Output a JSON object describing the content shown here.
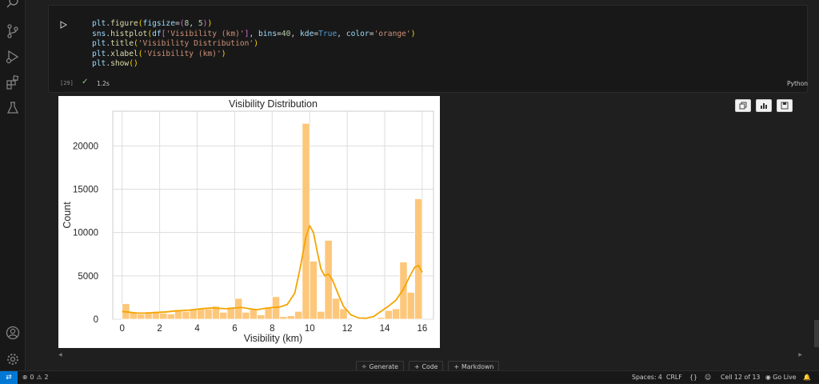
{
  "activity_bar": {
    "icons": [
      "search-icon",
      "source-control-icon",
      "run-debug-icon",
      "extensions-icon",
      "testing-icon",
      "account-icon",
      "settings-gear-icon"
    ]
  },
  "cell": {
    "execution_count": "[29]",
    "exec_time": "1.2s",
    "language": "Python",
    "code_lines": [
      "plt.figure(figsize=(8, 5))",
      "sns.histplot(df['Visibility (km)'], bins=40, kde=True, color='orange')",
      "plt.title('Visibility Distribution')",
      "plt.xlabel('Visibility (km)')",
      "plt.show()"
    ]
  },
  "output_more": "...",
  "toolbar": {
    "generate_label": "Generate",
    "code_label": "Code",
    "markdown_label": "Markdown"
  },
  "status_bar": {
    "errors": "0",
    "warnings": "2",
    "spaces": "Spaces: 4",
    "eol": "CRLF",
    "brackets": "{}",
    "cell_position": "Cell 12 of 13",
    "go_live": "Go Live"
  },
  "colors": {
    "bar_fill": "#fdc77b",
    "bar_edge": "#ffffff",
    "kde_line": "#f5a400"
  },
  "chart_data": {
    "type": "bar",
    "title": "Visibility Distribution",
    "xlabel": "Visibility (km)",
    "ylabel": "Count",
    "xlim": [
      -0.5,
      16.6
    ],
    "ylim": [
      0,
      24000
    ],
    "xticks": [
      0,
      2,
      4,
      6,
      8,
      10,
      12,
      14,
      16
    ],
    "yticks": [
      0,
      5000,
      10000,
      15000,
      20000
    ],
    "grid": true,
    "bins": [
      {
        "x0": 0.0,
        "x1": 0.4,
        "count": 1800
      },
      {
        "x0": 0.4,
        "x1": 0.8,
        "count": 800
      },
      {
        "x0": 0.8,
        "x1": 1.2,
        "count": 600
      },
      {
        "x0": 1.2,
        "x1": 1.6,
        "count": 800
      },
      {
        "x0": 1.6,
        "x1": 2.0,
        "count": 900
      },
      {
        "x0": 2.0,
        "x1": 2.4,
        "count": 700
      },
      {
        "x0": 2.4,
        "x1": 2.8,
        "count": 600
      },
      {
        "x0": 2.8,
        "x1": 3.2,
        "count": 1100
      },
      {
        "x0": 3.2,
        "x1": 3.6,
        "count": 900
      },
      {
        "x0": 3.6,
        "x1": 4.0,
        "count": 1200
      },
      {
        "x0": 4.0,
        "x1": 4.4,
        "count": 1300
      },
      {
        "x0": 4.4,
        "x1": 4.8,
        "count": 1200
      },
      {
        "x0": 4.8,
        "x1": 5.2,
        "count": 1500
      },
      {
        "x0": 5.2,
        "x1": 5.6,
        "count": 800
      },
      {
        "x0": 5.6,
        "x1": 6.0,
        "count": 1400
      },
      {
        "x0": 6.0,
        "x1": 6.4,
        "count": 2400
      },
      {
        "x0": 6.4,
        "x1": 6.8,
        "count": 800
      },
      {
        "x0": 6.8,
        "x1": 7.2,
        "count": 1200
      },
      {
        "x0": 7.2,
        "x1": 7.6,
        "count": 500
      },
      {
        "x0": 7.6,
        "x1": 8.0,
        "count": 1400
      },
      {
        "x0": 8.0,
        "x1": 8.4,
        "count": 2600
      },
      {
        "x0": 8.4,
        "x1": 8.8,
        "count": 300
      },
      {
        "x0": 8.8,
        "x1": 9.2,
        "count": 400
      },
      {
        "x0": 9.2,
        "x1": 9.6,
        "count": 900
      },
      {
        "x0": 9.6,
        "x1": 10.0,
        "count": 22600
      },
      {
        "x0": 10.0,
        "x1": 10.4,
        "count": 6700
      },
      {
        "x0": 10.4,
        "x1": 10.8,
        "count": 900
      },
      {
        "x0": 10.8,
        "x1": 11.2,
        "count": 9100
      },
      {
        "x0": 11.2,
        "x1": 11.6,
        "count": 2400
      },
      {
        "x0": 11.6,
        "x1": 12.0,
        "count": 1200
      },
      {
        "x0": 12.0,
        "x1": 12.4,
        "count": 100
      },
      {
        "x0": 12.4,
        "x1": 12.8,
        "count": 50
      },
      {
        "x0": 12.8,
        "x1": 13.2,
        "count": 50
      },
      {
        "x0": 13.2,
        "x1": 13.6,
        "count": 50
      },
      {
        "x0": 13.6,
        "x1": 14.0,
        "count": 200
      },
      {
        "x0": 14.0,
        "x1": 14.4,
        "count": 1000
      },
      {
        "x0": 14.4,
        "x1": 14.8,
        "count": 1200
      },
      {
        "x0": 14.8,
        "x1": 15.2,
        "count": 6600
      },
      {
        "x0": 15.2,
        "x1": 15.6,
        "count": 3100
      },
      {
        "x0": 15.6,
        "x1": 16.0,
        "count": 13900
      }
    ],
    "kde": {
      "x": [
        0,
        0.4,
        0.8,
        1.2,
        1.6,
        2,
        2.4,
        2.8,
        3.2,
        3.6,
        4,
        4.4,
        4.8,
        5.2,
        5.6,
        6,
        6.4,
        6.8,
        7.2,
        7.6,
        8,
        8.4,
        8.8,
        9.2,
        9.5,
        9.8,
        10,
        10.2,
        10.4,
        10.6,
        10.8,
        11,
        11.2,
        11.5,
        11.8,
        12.2,
        12.6,
        13,
        13.4,
        13.8,
        14.2,
        14.6,
        15,
        15.3,
        15.6,
        15.8,
        16
      ],
      "y": [
        900,
        800,
        700,
        700,
        750,
        800,
        850,
        950,
        1000,
        1050,
        1150,
        1250,
        1300,
        1250,
        1200,
        1300,
        1350,
        1200,
        1100,
        1250,
        1350,
        1400,
        1700,
        3000,
        6000,
        9500,
        10800,
        10000,
        7800,
        5800,
        5000,
        5200,
        4600,
        3000,
        1500,
        500,
        150,
        100,
        300,
        900,
        1500,
        2200,
        3500,
        4800,
        6000,
        6200,
        5400
      ]
    }
  }
}
